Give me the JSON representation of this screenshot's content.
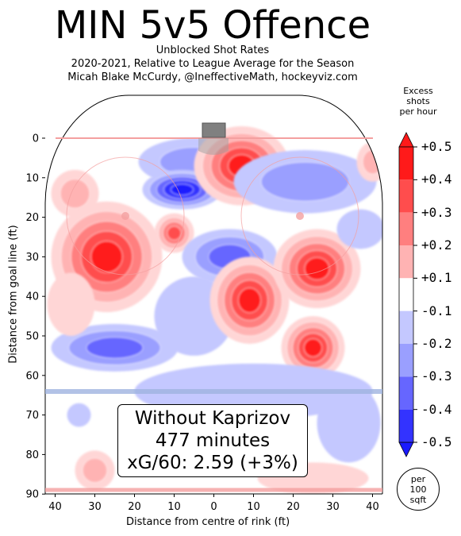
{
  "title": "MIN 5v5 Offence",
  "subtitle_lines": [
    "Unblocked Shot Rates",
    "2020-2021, Relative to League Average for the Season",
    "Micah Blake McCurdy, @IneffectiveMath, hockeyviz.com"
  ],
  "colorbar": {
    "title_lines": [
      "Excess",
      "shots",
      "per hour"
    ],
    "ticks": [
      "+0.5",
      "+0.4",
      "+0.3",
      "+0.2",
      "+0.1",
      "-0.1",
      "-0.2",
      "-0.3",
      "-0.4",
      "-0.5"
    ],
    "colors": [
      "#ff1a1a",
      "#ff4d4d",
      "#ff7f7f",
      "#ffb3b3",
      "#ffd6d6",
      "#ffffff",
      "#c4c8ff",
      "#9a9fff",
      "#6666ff",
      "#3333ff",
      "#1a1aff"
    ],
    "unit_lines": [
      "per",
      "100",
      "sqft"
    ]
  },
  "annotation": {
    "line1": "Without Kaprizov",
    "line2": "477 minutes",
    "line3": "xG/60: 2.59 (+3%)"
  },
  "chart_data": {
    "type": "heatmap",
    "xlabel": "Distance from centre of rink (ft)",
    "ylabel": "Distance from goal line (ft)",
    "x_ticks": [
      40,
      30,
      20,
      10,
      0,
      10,
      20,
      30,
      40
    ],
    "y_ticks": [
      0,
      10,
      20,
      30,
      40,
      50,
      60,
      70,
      80,
      90
    ],
    "xlim": [
      -42.5,
      42.5
    ],
    "ylim": [
      -11,
      90
    ],
    "blobs": [
      {
        "x": -5,
        "y": 6,
        "rx": 14,
        "ry": 6,
        "value": -0.2
      },
      {
        "x": -8,
        "y": 13,
        "rx": 10,
        "ry": 5,
        "value": -0.5
      },
      {
        "x": 7,
        "y": 7,
        "rx": 12,
        "ry": 10,
        "value": 0.5
      },
      {
        "x": 23,
        "y": 11,
        "rx": 18,
        "ry": 8,
        "value": -0.2
      },
      {
        "x": -35,
        "y": 14,
        "rx": 6,
        "ry": 6,
        "value": 0.2
      },
      {
        "x": 40,
        "y": 6,
        "rx": 4,
        "ry": 5,
        "value": 0.2
      },
      {
        "x": -27,
        "y": 30,
        "rx": 14,
        "ry": 14,
        "value": 0.5
      },
      {
        "x": -10,
        "y": 24,
        "rx": 5,
        "ry": 5,
        "value": 0.4
      },
      {
        "x": 4,
        "y": 30,
        "rx": 12,
        "ry": 7,
        "value": -0.3
      },
      {
        "x": -5,
        "y": 45,
        "rx": 10,
        "ry": 10,
        "value": -0.1
      },
      {
        "x": 9,
        "y": 41,
        "rx": 10,
        "ry": 11,
        "value": 0.5
      },
      {
        "x": 26,
        "y": 33,
        "rx": 11,
        "ry": 10,
        "value": 0.5
      },
      {
        "x": 37,
        "y": 23,
        "rx": 6,
        "ry": 5,
        "value": -0.1
      },
      {
        "x": 25,
        "y": 53,
        "rx": 8,
        "ry": 8,
        "value": 0.5
      },
      {
        "x": -25,
        "y": 53,
        "rx": 16,
        "ry": 6,
        "value": -0.3
      },
      {
        "x": -36,
        "y": 42,
        "rx": 6,
        "ry": 8,
        "value": 0.1
      },
      {
        "x": 34,
        "y": 72,
        "rx": 8,
        "ry": 10,
        "value": -0.1
      },
      {
        "x": 10,
        "y": 64,
        "rx": 30,
        "ry": 7,
        "value": -0.1
      },
      {
        "x": -30,
        "y": 84,
        "rx": 5,
        "ry": 5,
        "value": 0.2
      },
      {
        "x": 25,
        "y": 86,
        "rx": 14,
        "ry": 4,
        "value": 0.1
      },
      {
        "x": -34,
        "y": 70,
        "rx": 3,
        "ry": 3,
        "value": -0.1
      }
    ]
  }
}
